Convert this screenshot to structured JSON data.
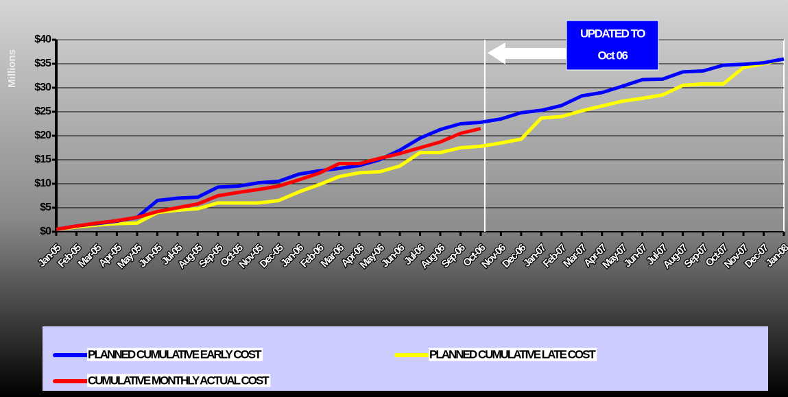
{
  "chart_data": {
    "type": "line",
    "y_axis_label": "Millions",
    "annotations": [
      "UPDATED TO",
      "Oct 06"
    ],
    "categories": [
      "Jan-05",
      "Feb-05",
      "Mar-05",
      "Apr-05",
      "May-05",
      "Jun-05",
      "Jul-05",
      "Aug-05",
      "Sep-05",
      "Oct-05",
      "Nov-05",
      "Dec-05",
      "Jan-06",
      "Feb-06",
      "Mar-06",
      "Apr-06",
      "May-06",
      "Jun-06",
      "Jul-06",
      "Aug-06",
      "Sep-06",
      "Oct-06",
      "Nov-06",
      "Dec-06",
      "Jan-07",
      "Feb-07",
      "Mar-07",
      "Apr-07",
      "May-07",
      "Jun-07",
      "Jul-07",
      "Aug-07",
      "Sep-07",
      "Oct-07",
      "Nov-07",
      "Dec-07",
      "Jan-08"
    ],
    "series": [
      {
        "name": "PLANNED CUMULATIVE EARLY COST",
        "color": "#0000ff",
        "values": [
          0.5,
          1.2,
          1.7,
          2.2,
          3,
          6.5,
          7,
          7.2,
          9.3,
          9.5,
          10.2,
          10.5,
          12,
          12.7,
          13.2,
          13.8,
          15,
          17,
          19.5,
          21.3,
          22.5,
          22.8,
          23.5,
          24.8,
          25.3,
          26.3,
          28.3,
          29,
          30.3,
          31.7,
          31.8,
          33.3,
          33.5,
          34.7,
          34.9,
          35.2,
          36
        ]
      },
      {
        "name": "PLANNED CUMULATIVE LATE COST",
        "color": "#ffff00",
        "values": [
          0.5,
          1,
          1.4,
          1.7,
          1.8,
          4,
          4.5,
          4.8,
          6,
          6,
          6,
          6.5,
          8.3,
          9.8,
          11.5,
          12.3,
          12.5,
          13.7,
          16.5,
          16.5,
          17.5,
          17.8,
          18.5,
          19.3,
          23.7,
          24,
          25.2,
          26.2,
          27.2,
          27.8,
          28.5,
          30.5,
          30.8,
          30.8,
          34.2,
          35,
          36
        ]
      },
      {
        "name": "CUMULATIVE MONTHLY ACTUAL COST",
        "color": "#ff0000",
        "values": [
          0.5,
          1.2,
          1.8,
          2.3,
          3,
          4.2,
          5,
          5.8,
          7.5,
          8.2,
          8.8,
          9.5,
          10.8,
          12.2,
          14.2,
          14.2,
          15.3,
          16.3,
          17.5,
          18.7,
          20.5,
          21.5,
          null,
          null,
          null,
          null,
          null,
          null,
          null,
          null,
          null,
          null,
          null,
          null,
          null,
          null,
          null
        ]
      }
    ],
    "ylim": [
      0,
      40
    ],
    "yticks": [
      {
        "value": 0,
        "label": "$0"
      },
      {
        "value": 5,
        "label": "$5"
      },
      {
        "value": 10,
        "label": "$10"
      },
      {
        "value": 15,
        "label": "$15"
      },
      {
        "value": 20,
        "label": "$20"
      },
      {
        "value": 25,
        "label": "$25"
      },
      {
        "value": 30,
        "label": "$30"
      },
      {
        "value": 35,
        "label": "$35"
      },
      {
        "value": 40,
        "label": "$40"
      }
    ],
    "grid": true
  }
}
